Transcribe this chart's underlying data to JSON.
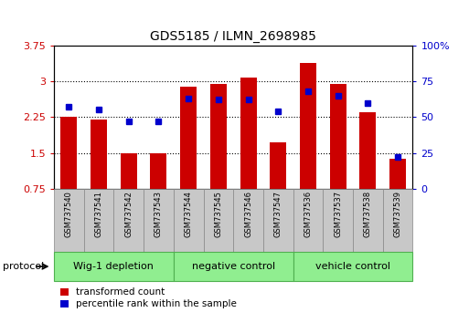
{
  "title": "GDS5185 / ILMN_2698985",
  "samples": [
    "GSM737540",
    "GSM737541",
    "GSM737542",
    "GSM737543",
    "GSM737544",
    "GSM737545",
    "GSM737546",
    "GSM737547",
    "GSM737536",
    "GSM737537",
    "GSM737538",
    "GSM737539"
  ],
  "red_values": [
    2.25,
    2.2,
    1.5,
    1.5,
    2.88,
    2.95,
    3.07,
    1.72,
    3.38,
    2.95,
    2.35,
    1.38
  ],
  "blue_values": [
    57,
    55,
    47,
    47,
    63,
    62,
    62,
    54,
    68,
    65,
    60,
    22
  ],
  "groups": [
    {
      "label": "Wig-1 depletion",
      "start": 0,
      "end": 3
    },
    {
      "label": "negative control",
      "start": 4,
      "end": 7
    },
    {
      "label": "vehicle control",
      "start": 8,
      "end": 11
    }
  ],
  "group_color": "#90EE90",
  "group_edge_color": "#50B050",
  "ylim_left": [
    0.75,
    3.75
  ],
  "ylim_right": [
    0,
    100
  ],
  "yticks_left": [
    0.75,
    1.5,
    2.25,
    3.0,
    3.75
  ],
  "ytick_labels_left": [
    "0.75",
    "1.5",
    "2.25",
    "3",
    "3.75"
  ],
  "yticks_right": [
    0,
    25,
    50,
    75,
    100
  ],
  "ytick_labels_right": [
    "0",
    "25",
    "50",
    "75",
    "100%"
  ],
  "bar_color": "#CC0000",
  "dot_color": "#0000CC",
  "bar_width": 0.55,
  "protocol_label": "protocol",
  "legend_red": "transformed count",
  "legend_blue": "percentile rank within the sample",
  "sample_box_color": "#C8C8C8",
  "sample_box_edge": "#888888",
  "grid_lines": [
    1.5,
    2.25,
    3.0
  ]
}
